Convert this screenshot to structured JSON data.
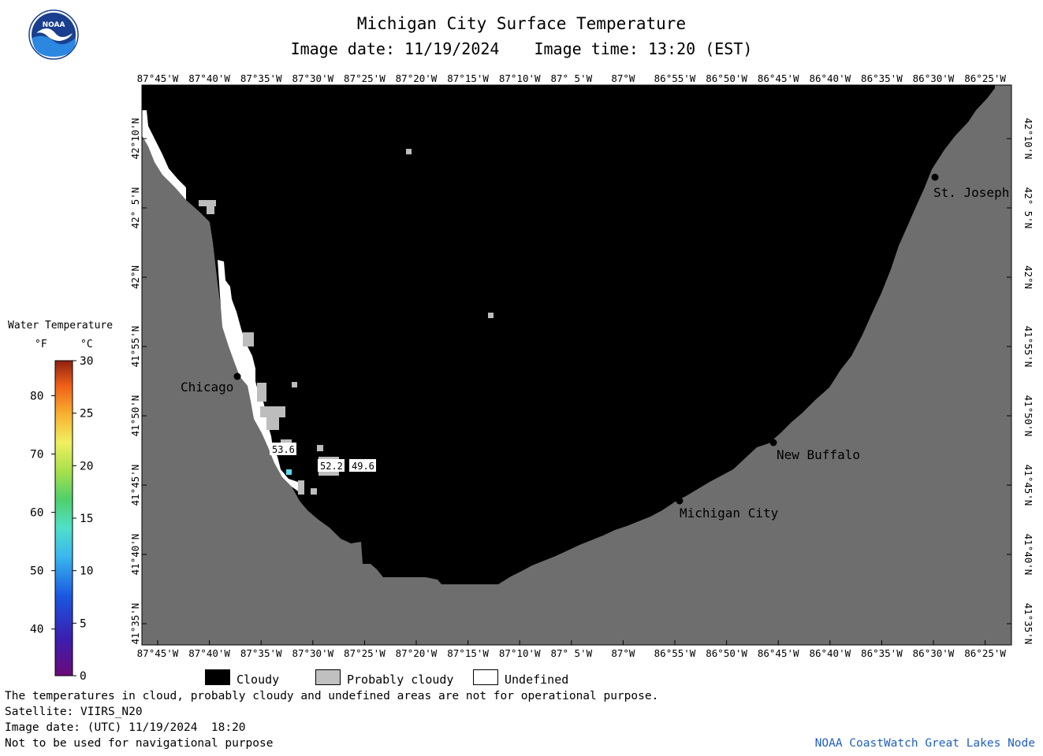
{
  "title": "Michigan City Surface Temperature",
  "image_date_label": "Image date: 11/19/2024",
  "image_time_label": "Image time: 13:20 (EST)",
  "logo_text": "NOAA",
  "lon_labels": [
    "87°45'W",
    "87°40'W",
    "87°35'W",
    "87°30'W",
    "87°25'W",
    "87°20'W",
    "87°15'W",
    "87°10'W",
    "87° 5'W",
    "87°W",
    "86°55'W",
    "86°50'W",
    "86°45'W",
    "86°40'W",
    "86°35'W",
    "86°30'W",
    "86°25'W"
  ],
  "lat_labels": [
    "42°10'N",
    "42° 5'N",
    "42°N",
    "41°55'N",
    "41°50'N",
    "41°45'N",
    "41°40'N",
    "41°35'N"
  ],
  "cities": [
    {
      "name": "Chicago"
    },
    {
      "name": "St. Joseph"
    },
    {
      "name": "New Buffalo"
    },
    {
      "name": "Michigan City"
    }
  ],
  "temperature_readings": [
    "53.6",
    "52.2",
    "49.6"
  ],
  "legend": {
    "title": "Water Temperature",
    "unit_f": "°F",
    "unit_c": "°C",
    "f_ticks": [
      "80",
      "70",
      "60",
      "50",
      "40"
    ],
    "c_ticks": [
      "30",
      "25",
      "20",
      "15",
      "10",
      "5",
      "0"
    ],
    "items": [
      {
        "label": "Cloudy",
        "color": "#000000"
      },
      {
        "label": "Probably cloudy",
        "color": "#c0c0c0"
      },
      {
        "label": "Undefined",
        "color": "#ffffff"
      }
    ]
  },
  "colors": {
    "land": "#6e6e6e",
    "cloud": "#000000",
    "probably_cloudy": "#bdbdbd"
  },
  "footer": {
    "disclaimer": "The temperatures in cloud, probably cloudy and undefined areas are not for operational purpose.",
    "satellite": "Satellite: VIIRS_N20",
    "utc_date": "Image date: (UTC) 11/19/2024  18:20",
    "nav_warning": "Not to be used for navigational purpose",
    "credit": "NOAA CoastWatch Great Lakes Node"
  }
}
